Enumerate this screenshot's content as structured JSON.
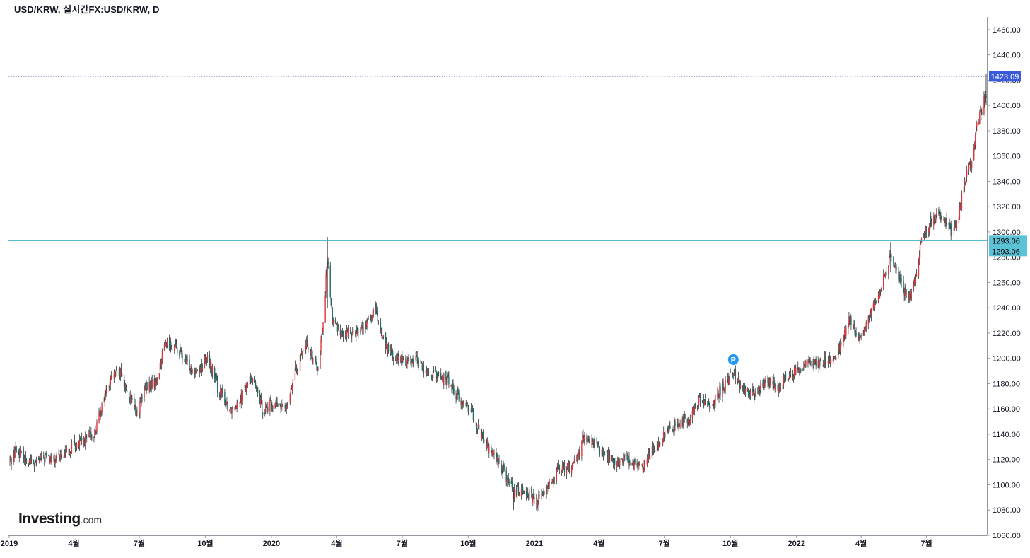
{
  "header": {
    "title": "USD/KRW, 실시간FX:USD/KRW, D"
  },
  "watermark": {
    "brand": "Investing",
    "suffix": ".com"
  },
  "marker": {
    "label": "P",
    "color": "#2196f3"
  },
  "colors": {
    "up": "#e0343b",
    "down": "#1f6f6a",
    "wick": "#333333",
    "price_line": "#1e2a9a",
    "level_line": "#3fb3cf",
    "price_badge": "#3a5bd9",
    "level_badge": "#5cc3d6"
  },
  "chart_data": {
    "type": "candlestick",
    "title": "USD/KRW, 실시간FX:USD/KRW, D",
    "ylim": [
      1060,
      1470
    ],
    "y_ticks": [
      1060,
      1080,
      1100,
      1120,
      1140,
      1160,
      1180,
      1200,
      1220,
      1240,
      1260,
      1280,
      1300,
      1320,
      1340,
      1360,
      1380,
      1400,
      1420,
      1440,
      1460
    ],
    "y_tick_labels": [
      "1060.00",
      "1080.00",
      "1100.00",
      "1120.00",
      "1140.00",
      "1160.00",
      "1180.00",
      "1200.00",
      "1220.00",
      "1240.00",
      "1260.00",
      "1280.00",
      "1300.00",
      "1320.00",
      "1340.00",
      "1360.00",
      "1380.00",
      "1400.00",
      "1420.00",
      "1440.00",
      "1460.00"
    ],
    "x_range": [
      "2018-12-31",
      "2022-09-23"
    ],
    "x_ticks": [
      {
        "date": "2019-01-01",
        "label": "2019"
      },
      {
        "date": "2019-04-01",
        "label": "4월"
      },
      {
        "date": "2019-07-01",
        "label": "7월"
      },
      {
        "date": "2019-10-01",
        "label": "10월"
      },
      {
        "date": "2020-01-01",
        "label": "2020"
      },
      {
        "date": "2020-04-01",
        "label": "4월"
      },
      {
        "date": "2020-07-01",
        "label": "7월"
      },
      {
        "date": "2020-10-01",
        "label": "10월"
      },
      {
        "date": "2021-01-01",
        "label": "2021"
      },
      {
        "date": "2021-04-01",
        "label": "4월"
      },
      {
        "date": "2021-07-01",
        "label": "7월"
      },
      {
        "date": "2021-10-01",
        "label": "10월"
      },
      {
        "date": "2022-01-01",
        "label": "2022"
      },
      {
        "date": "2022-04-01",
        "label": "4월"
      },
      {
        "date": "2022-07-01",
        "label": "7월"
      }
    ],
    "close_path": [
      [
        "2019-01-02",
        1118
      ],
      [
        "2019-01-10",
        1128
      ],
      [
        "2019-01-22",
        1122
      ],
      [
        "2019-02-05",
        1116
      ],
      [
        "2019-02-20",
        1122
      ],
      [
        "2019-03-05",
        1118
      ],
      [
        "2019-03-20",
        1126
      ],
      [
        "2019-04-05",
        1132
      ],
      [
        "2019-04-20",
        1136
      ],
      [
        "2019-05-01",
        1142
      ],
      [
        "2019-05-12",
        1168
      ],
      [
        "2019-05-25",
        1186
      ],
      [
        "2019-06-05",
        1188
      ],
      [
        "2019-06-18",
        1168
      ],
      [
        "2019-06-28",
        1156
      ],
      [
        "2019-07-10",
        1176
      ],
      [
        "2019-07-25",
        1182
      ],
      [
        "2019-08-06",
        1212
      ],
      [
        "2019-08-20",
        1210
      ],
      [
        "2019-09-05",
        1196
      ],
      [
        "2019-09-20",
        1190
      ],
      [
        "2019-10-05",
        1200
      ],
      [
        "2019-10-20",
        1174
      ],
      [
        "2019-11-05",
        1160
      ],
      [
        "2019-11-20",
        1170
      ],
      [
        "2019-12-05",
        1186
      ],
      [
        "2019-12-20",
        1160
      ],
      [
        "2020-01-05",
        1164
      ],
      [
        "2020-01-20",
        1160
      ],
      [
        "2020-02-05",
        1192
      ],
      [
        "2020-02-20",
        1212
      ],
      [
        "2020-03-05",
        1192
      ],
      [
        "2020-03-12",
        1222
      ],
      [
        "2020-03-19",
        1278
      ],
      [
        "2020-03-26",
        1230
      ],
      [
        "2020-04-10",
        1218
      ],
      [
        "2020-04-25",
        1222
      ],
      [
        "2020-05-10",
        1224
      ],
      [
        "2020-05-25",
        1238
      ],
      [
        "2020-06-05",
        1214
      ],
      [
        "2020-06-20",
        1200
      ],
      [
        "2020-07-05",
        1198
      ],
      [
        "2020-07-20",
        1200
      ],
      [
        "2020-08-05",
        1188
      ],
      [
        "2020-08-20",
        1186
      ],
      [
        "2020-09-05",
        1182
      ],
      [
        "2020-09-20",
        1166
      ],
      [
        "2020-10-05",
        1160
      ],
      [
        "2020-10-20",
        1138
      ],
      [
        "2020-11-05",
        1124
      ],
      [
        "2020-11-20",
        1110
      ],
      [
        "2020-12-03",
        1092
      ],
      [
        "2020-12-15",
        1098
      ],
      [
        "2021-01-04",
        1086
      ],
      [
        "2021-01-20",
        1100
      ],
      [
        "2021-02-05",
        1112
      ],
      [
        "2021-02-20",
        1114
      ],
      [
        "2021-03-05",
        1126
      ],
      [
        "2021-03-10",
        1138
      ],
      [
        "2021-03-25",
        1132
      ],
      [
        "2021-04-10",
        1124
      ],
      [
        "2021-04-25",
        1116
      ],
      [
        "2021-05-10",
        1122
      ],
      [
        "2021-05-25",
        1112
      ],
      [
        "2021-06-05",
        1118
      ],
      [
        "2021-06-20",
        1132
      ],
      [
        "2021-07-05",
        1142
      ],
      [
        "2021-07-20",
        1150
      ],
      [
        "2021-08-05",
        1152
      ],
      [
        "2021-08-20",
        1168
      ],
      [
        "2021-09-05",
        1162
      ],
      [
        "2021-09-20",
        1178
      ],
      [
        "2021-10-05",
        1190
      ],
      [
        "2021-10-15",
        1180
      ],
      [
        "2021-11-01",
        1170
      ],
      [
        "2021-11-20",
        1182
      ],
      [
        "2021-12-05",
        1178
      ],
      [
        "2021-12-20",
        1186
      ],
      [
        "2022-01-05",
        1192
      ],
      [
        "2022-01-20",
        1196
      ],
      [
        "2022-02-05",
        1196
      ],
      [
        "2022-02-20",
        1200
      ],
      [
        "2022-03-05",
        1210
      ],
      [
        "2022-03-15",
        1232
      ],
      [
        "2022-03-28",
        1214
      ],
      [
        "2022-04-10",
        1228
      ],
      [
        "2022-04-25",
        1250
      ],
      [
        "2022-05-12",
        1280
      ],
      [
        "2022-05-25",
        1262
      ],
      [
        "2022-06-05",
        1246
      ],
      [
        "2022-06-15",
        1260
      ],
      [
        "2022-06-25",
        1296
      ],
      [
        "2022-07-05",
        1306
      ],
      [
        "2022-07-15",
        1314
      ],
      [
        "2022-07-25",
        1312
      ],
      [
        "2022-08-05",
        1300
      ],
      [
        "2022-08-15",
        1312
      ],
      [
        "2022-08-23",
        1340
      ],
      [
        "2022-09-01",
        1356
      ],
      [
        "2022-09-08",
        1380
      ],
      [
        "2022-09-15",
        1395
      ],
      [
        "2022-09-22",
        1409
      ]
    ],
    "current_price": {
      "value": 1423.09,
      "label": "1423.09"
    },
    "horizontal_level": {
      "value": 1293.06,
      "label": "1293.06"
    },
    "level_badge_bottom": {
      "label": "1293.06"
    },
    "marker_point": {
      "date": "2021-10-05",
      "value": 1199
    }
  }
}
